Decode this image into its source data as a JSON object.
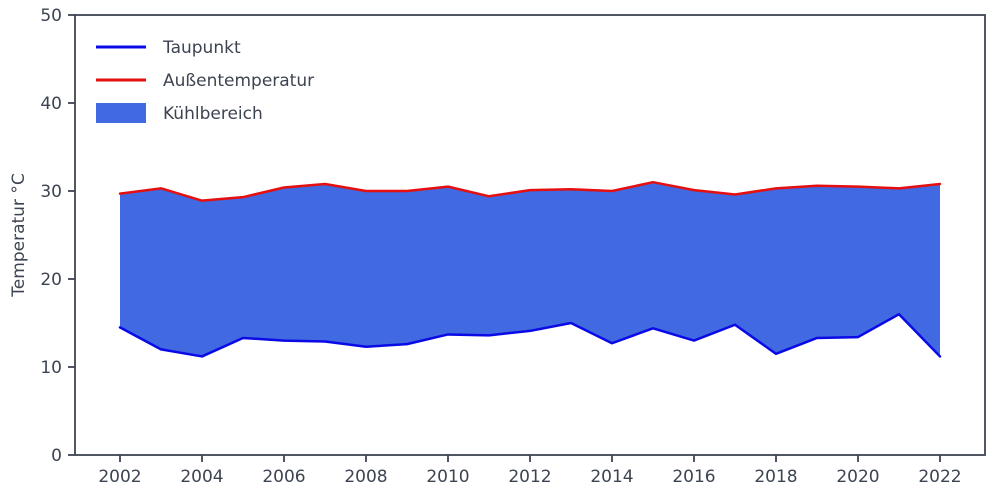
{
  "figure": {
    "background": "#ffffff",
    "text_color": "#3d4451",
    "spine_color": "#3d4451"
  },
  "chart_data": {
    "type": "area",
    "title": "",
    "xlabel": "",
    "ylabel": "Temperatur °C",
    "ylim": [
      0,
      50
    ],
    "xlim": [
      2000.9,
      2023.1
    ],
    "grid": false,
    "legend_position": "upper left",
    "x": [
      2002,
      2003,
      2004,
      2005,
      2006,
      2007,
      2008,
      2009,
      2010,
      2011,
      2012,
      2013,
      2014,
      2015,
      2016,
      2017,
      2018,
      2019,
      2020,
      2021,
      2022
    ],
    "xticks": [
      2002,
      2004,
      2006,
      2008,
      2010,
      2012,
      2014,
      2016,
      2018,
      2020,
      2022
    ],
    "yticks": [
      0,
      10,
      20,
      30,
      40,
      50
    ],
    "series": [
      {
        "name": "Taupunkt",
        "color": "#0a0ae6",
        "line_width": 2.5,
        "values": [
          14.5,
          12.0,
          11.2,
          13.3,
          13.0,
          12.9,
          12.3,
          12.6,
          13.7,
          13.6,
          14.1,
          15.0,
          12.7,
          14.4,
          13.0,
          14.8,
          11.5,
          13.3,
          13.4,
          16.0,
          11.2
        ]
      },
      {
        "name": "Außentemperatur",
        "color": "#e60f0f",
        "line_width": 2.5,
        "values": [
          29.7,
          30.3,
          28.9,
          29.3,
          30.4,
          30.8,
          30.0,
          30.0,
          30.5,
          29.4,
          30.1,
          30.2,
          30.0,
          31.0,
          30.1,
          29.6,
          30.3,
          30.6,
          30.5,
          30.3,
          30.8
        ]
      }
    ],
    "fill_between": {
      "name": "Kühlbereich",
      "color": "#4169e1",
      "upper": "Außentemperatur",
      "lower": "Taupunkt"
    }
  },
  "legend": {
    "items": [
      {
        "label": "Taupunkt",
        "type": "line",
        "color": "#0a0ae6"
      },
      {
        "label": "Außentemperatur",
        "type": "line",
        "color": "#e60f0f"
      },
      {
        "label": "Kühlbereich",
        "type": "patch",
        "color": "#4169e1"
      }
    ]
  }
}
